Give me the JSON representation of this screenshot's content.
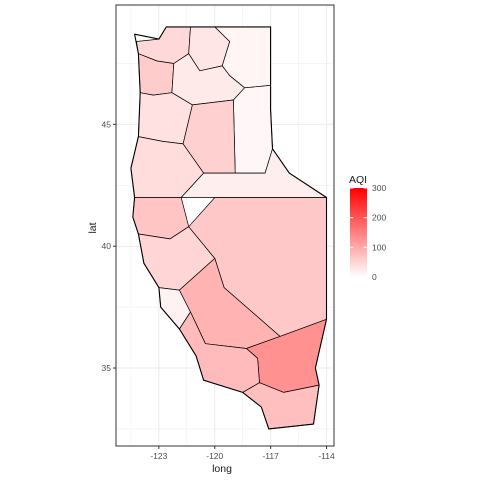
{
  "chart_data": {
    "type": "heatmap",
    "subtype": "choropleth-map",
    "xlabel": "long",
    "ylabel": "lat",
    "xlim": [
      -125.3,
      -113.6
    ],
    "ylim": [
      31.8,
      49.9
    ],
    "x_ticks": [
      -123,
      -120,
      -117,
      -114
    ],
    "x_tick_labels": [
      "-123",
      "-120",
      "-117",
      "-114"
    ],
    "y_ticks": [
      35,
      40,
      45
    ],
    "y_tick_labels": [
      "35",
      "40",
      "45"
    ],
    "grid": true,
    "legend": {
      "title": "AQI",
      "position": "right",
      "scale_min": 0,
      "scale_max": 300,
      "breaks": [
        0,
        100,
        200,
        300
      ],
      "break_labels": [
        "0",
        "100",
        "200",
        "300"
      ],
      "low_color": "#ffffff",
      "high_color": "#ff0000"
    },
    "regions": [
      {
        "aqi": 45
      },
      {
        "aqi": 30
      },
      {
        "aqi": 12
      },
      {
        "aqi": 60
      },
      {
        "aqi": 25
      },
      {
        "aqi": 10
      },
      {
        "aqi": 35
      },
      {
        "aqi": 55
      },
      {
        "aqi": 40
      },
      {
        "aqi": 70
      },
      {
        "aqi": 20
      },
      {
        "aqi": 50
      },
      {
        "aqi": 65
      },
      {
        "aqi": 15
      },
      {
        "aqi": 90
      },
      {
        "aqi": 130
      },
      {
        "aqi": 80
      },
      {
        "aqi": 75
      }
    ]
  }
}
